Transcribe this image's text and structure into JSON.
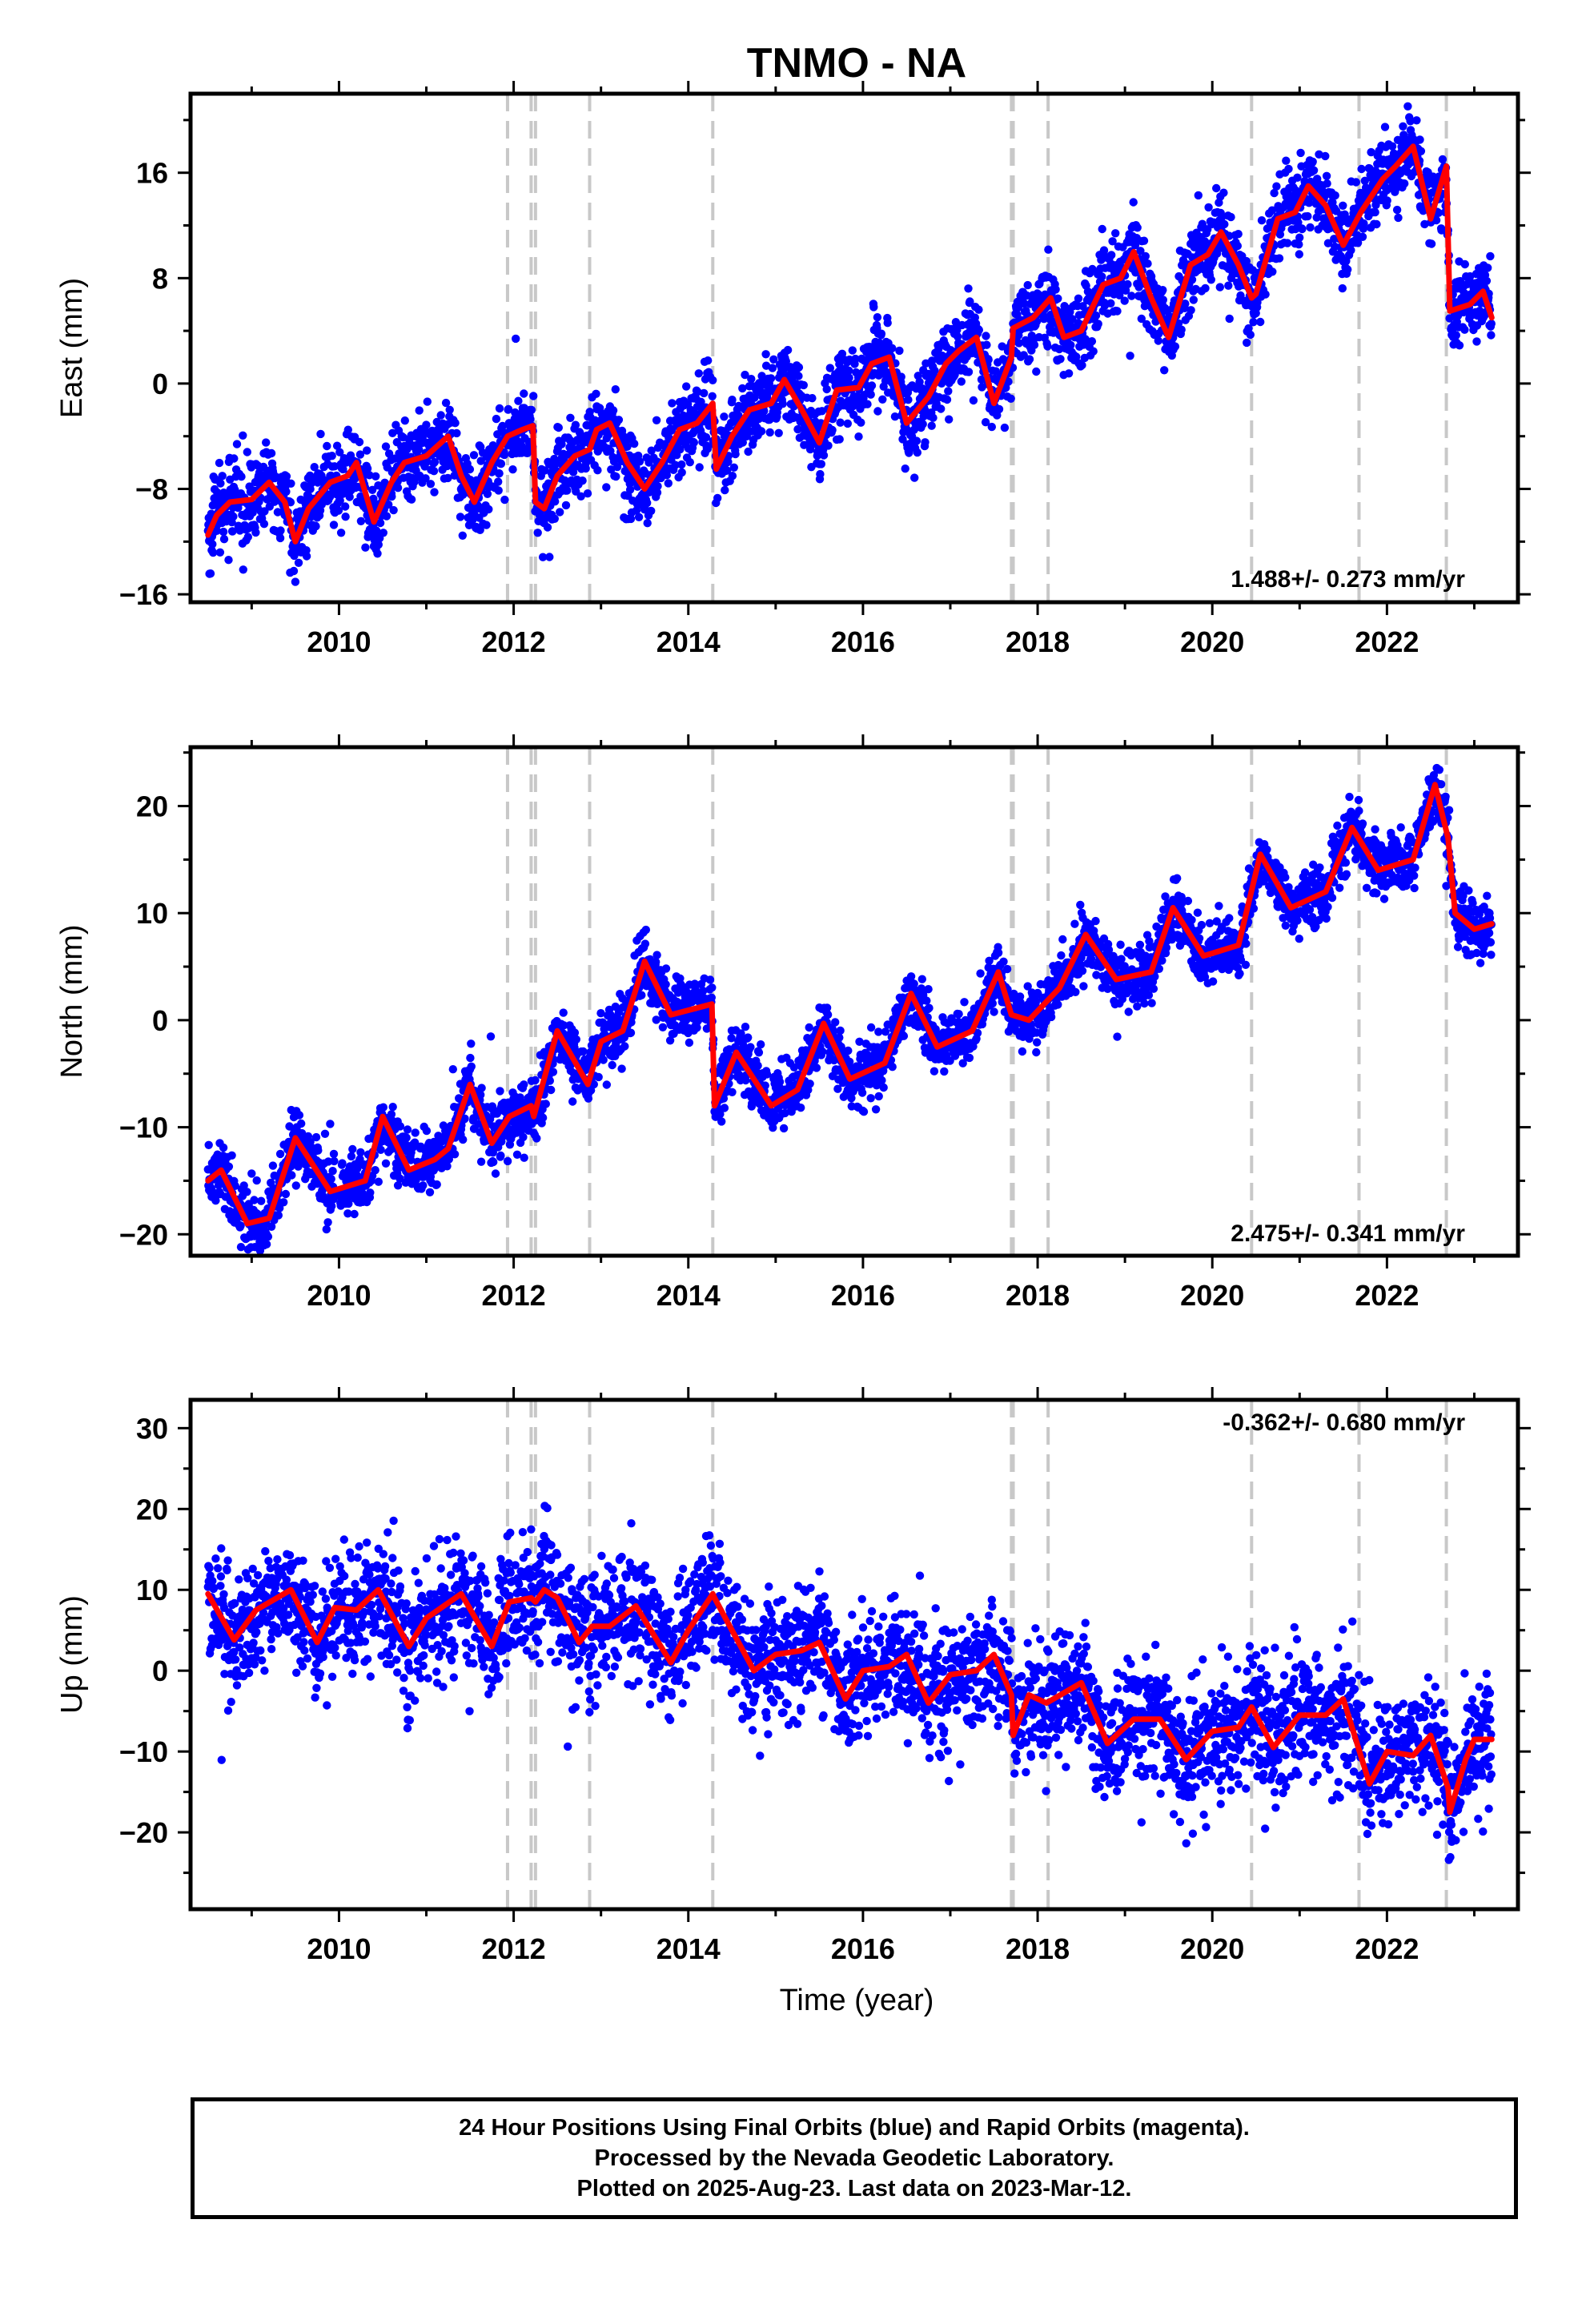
{
  "title": "TNMO - NA",
  "xlabel": "Time (year)",
  "footer": {
    "line1": "24 Hour Positions Using Final Orbits (blue) and Rapid Orbits (magenta).",
    "line2": "Processed by the Nevada Geodetic Laboratory.",
    "line3": "Plotted on 2025-Aug-23. Last data on 2023-Mar-12."
  },
  "colors": {
    "final_orbits": "#0000ff",
    "model": "#ff0000",
    "event_lines": "#c8c8c8"
  },
  "chart_data": [
    {
      "type": "scatter",
      "name": "east",
      "ylabel": "East (mm)",
      "rate_label": "1.488+/- 0.273 mm/yr",
      "xlim": [
        2008.3,
        2023.5
      ],
      "ylim": [
        -16.6,
        22
      ],
      "yticks": [
        -16,
        -8,
        0,
        8,
        16
      ],
      "xticks": [
        2010,
        2012,
        2014,
        2016,
        2018,
        2020,
        2022
      ],
      "model_curve": {
        "x": [
          2008.5,
          2008.6,
          2008.75,
          2009.0,
          2009.2,
          2009.38,
          2009.5,
          2009.65,
          2009.9,
          2010.1,
          2010.2,
          2010.4,
          2010.6,
          2010.75,
          2011.0,
          2011.25,
          2011.4,
          2011.55,
          2011.75,
          2011.93,
          2012.1,
          2012.22,
          2012.25,
          2012.35,
          2012.5,
          2012.7,
          2012.87,
          2012.95,
          2013.1,
          2013.3,
          2013.5,
          2013.7,
          2013.9,
          2014.1,
          2014.28,
          2014.32,
          2014.5,
          2014.7,
          2014.95,
          2015.1,
          2015.3,
          2015.5,
          2015.7,
          2015.95,
          2016.1,
          2016.3,
          2016.5,
          2016.75,
          2016.95,
          2017.1,
          2017.3,
          2017.5,
          2017.7,
          2017.72,
          2017.95,
          2018.15,
          2018.3,
          2018.5,
          2018.75,
          2018.95,
          2019.1,
          2019.3,
          2019.5,
          2019.75,
          2019.95,
          2020.1,
          2020.3,
          2020.45,
          2020.5,
          2020.75,
          2020.95,
          2021.1,
          2021.3,
          2021.5,
          2021.7,
          2021.95,
          2022.1,
          2022.3,
          2022.5,
          2022.68,
          2022.72,
          2022.95,
          2023.1,
          2023.2
        ],
        "y": [
          -11.5,
          -10,
          -9,
          -8.8,
          -7.5,
          -9,
          -12,
          -9.5,
          -7.5,
          -7,
          -6,
          -10.5,
          -7.5,
          -6,
          -5.5,
          -4,
          -7,
          -9,
          -6,
          -4,
          -3.5,
          -3.2,
          -9,
          -9.5,
          -7,
          -5.5,
          -5,
          -3.5,
          -3,
          -6,
          -8,
          -6,
          -3.5,
          -3,
          -1.5,
          -6.5,
          -4,
          -2,
          -1.5,
          0.3,
          -2,
          -4.5,
          -0.5,
          -0.3,
          1.5,
          2,
          -3,
          -1,
          1.5,
          2.5,
          3.5,
          -1.5,
          2,
          4.2,
          5,
          6.5,
          3.5,
          4,
          7.5,
          8,
          10,
          6.5,
          3.5,
          9,
          9.8,
          11.5,
          9,
          6.5,
          6.8,
          12.5,
          13,
          15,
          13.5,
          10.5,
          13,
          15.5,
          16.5,
          18,
          12.5,
          16.5,
          5.5,
          6,
          7,
          5
        ]
      },
      "event_lines": [
        2011.93,
        2012.2,
        2012.25,
        2012.87,
        2014.28,
        2017.7,
        2017.72,
        2018.12,
        2020.45,
        2021.68,
        2022.68
      ]
    },
    {
      "type": "scatter",
      "name": "north",
      "ylabel": "North (mm)",
      "rate_label": "2.475+/- 0.341 mm/yr",
      "xlim": [
        2008.3,
        2023.5
      ],
      "ylim": [
        -22,
        25.5
      ],
      "yticks": [
        -20,
        -10,
        0,
        10,
        20
      ],
      "xticks": [
        2010,
        2012,
        2014,
        2016,
        2018,
        2020,
        2022
      ],
      "model_curve": {
        "x": [
          2008.5,
          2008.65,
          2008.95,
          2009.2,
          2009.5,
          2009.9,
          2010.3,
          2010.5,
          2010.8,
          2011.1,
          2011.25,
          2011.5,
          2011.75,
          2011.95,
          2012.2,
          2012.23,
          2012.5,
          2012.85,
          2013.0,
          2013.25,
          2013.5,
          2013.8,
          2014.27,
          2014.3,
          2014.55,
          2014.95,
          2015.25,
          2015.55,
          2015.85,
          2016.25,
          2016.55,
          2016.85,
          2017.25,
          2017.55,
          2017.7,
          2017.9,
          2018.25,
          2018.55,
          2018.9,
          2019.3,
          2019.55,
          2019.9,
          2020.3,
          2020.55,
          2020.9,
          2021.3,
          2021.6,
          2021.9,
          2022.3,
          2022.55,
          2022.7,
          2022.78,
          2023.0,
          2023.2
        ],
        "y": [
          -15,
          -14,
          -19,
          -18.5,
          -11,
          -16,
          -15,
          -9,
          -14,
          -13,
          -12,
          -6,
          -11.5,
          -9,
          -8,
          -9,
          -1,
          -6,
          -2,
          -1,
          5.5,
          0.5,
          1.5,
          -8,
          -3,
          -8,
          -6.5,
          -0.3,
          -5.5,
          -4,
          2.5,
          -2.5,
          -1,
          4.5,
          0.5,
          0,
          3,
          8,
          3.8,
          4.5,
          10.5,
          6,
          7,
          15.5,
          10.5,
          12,
          18,
          14,
          15,
          22,
          17,
          10,
          8.5,
          9
        ]
      },
      "event_lines": [
        2011.93,
        2012.2,
        2012.25,
        2012.87,
        2014.28,
        2017.7,
        2017.72,
        2018.12,
        2020.45,
        2021.68,
        2022.68
      ]
    },
    {
      "type": "scatter",
      "name": "up",
      "ylabel": "Up (mm)",
      "rate_label": "-0.362+/- 0.680 mm/yr",
      "xlim": [
        2008.3,
        2023.5
      ],
      "ylim": [
        -29.5,
        33.5
      ],
      "yticks": [
        -20,
        -10,
        0,
        10,
        20,
        30
      ],
      "xticks": [
        2010,
        2012,
        2014,
        2016,
        2018,
        2020,
        2022
      ],
      "model_curve": {
        "x": [
          2008.5,
          2008.8,
          2009.05,
          2009.45,
          2009.75,
          2009.95,
          2010.2,
          2010.45,
          2010.8,
          2011.0,
          2011.4,
          2011.75,
          2011.95,
          2012.2,
          2012.25,
          2012.35,
          2012.5,
          2012.75,
          2012.9,
          2013.1,
          2013.4,
          2013.8,
          2014.0,
          2014.28,
          2014.3,
          2014.45,
          2014.75,
          2015.0,
          2015.3,
          2015.5,
          2015.8,
          2016.0,
          2016.3,
          2016.5,
          2016.75,
          2017.0,
          2017.3,
          2017.5,
          2017.7,
          2017.72,
          2017.9,
          2018.1,
          2018.5,
          2018.8,
          2019.1,
          2019.4,
          2019.7,
          2020.0,
          2020.3,
          2020.45,
          2020.7,
          2021.0,
          2021.3,
          2021.5,
          2021.8,
          2022.0,
          2022.3,
          2022.5,
          2022.7,
          2022.72,
          2022.9,
          2023.0,
          2023.2
        ],
        "y": [
          9.5,
          3.8,
          7.5,
          10,
          3.5,
          7.8,
          7.5,
          10,
          3,
          6.5,
          9.5,
          3,
          8.5,
          9,
          8.5,
          10,
          9,
          3.5,
          5.5,
          5.5,
          8,
          1,
          5,
          9.5,
          9,
          6,
          0,
          2,
          2.5,
          3.5,
          -3.5,
          0,
          0.5,
          2,
          -4,
          -0.5,
          0,
          2,
          -3,
          -8,
          -3,
          -4,
          -1.5,
          -9,
          -6,
          -6,
          -11,
          -7.5,
          -7,
          -4.5,
          -9.5,
          -5.5,
          -5.5,
          -3.5,
          -14,
          -10,
          -10.5,
          -8,
          -14.5,
          -17.5,
          -11,
          -8.5,
          -8.5
        ]
      },
      "event_lines": [
        2011.93,
        2012.2,
        2012.25,
        2012.87,
        2014.28,
        2017.7,
        2017.72,
        2018.12,
        2020.45,
        2021.68,
        2022.68
      ]
    }
  ]
}
